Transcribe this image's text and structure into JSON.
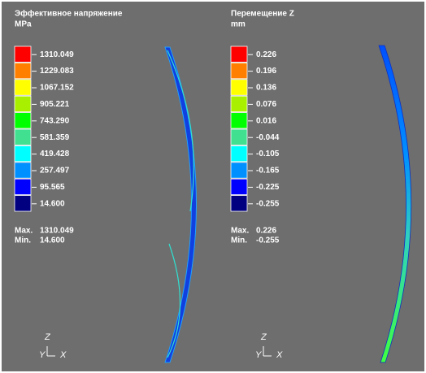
{
  "panels": [
    {
      "title": "Эффективное напряжение",
      "unit": "MPa",
      "legend": [
        {
          "label": "1310.049",
          "color": "#ff0000"
        },
        {
          "label": "1229.083",
          "color": "#ff8000"
        },
        {
          "label": "1067.152",
          "color": "#ffff00"
        },
        {
          "label": "905.221",
          "color": "#a8f000"
        },
        {
          "label": "743.290",
          "color": "#00ff00"
        },
        {
          "label": "581.359",
          "color": "#40e090"
        },
        {
          "label": "419.428",
          "color": "#00ffff"
        },
        {
          "label": "257.497",
          "color": "#0090ff"
        },
        {
          "label": "95.565",
          "color": "#0000ff"
        },
        {
          "label": "14.600",
          "color": "#000080"
        }
      ],
      "max_label": "Max.",
      "max": "1310.049",
      "min_label": "Min.",
      "min": "14.600",
      "axes": {
        "z": "Z",
        "y": "Y",
        "x": "X"
      }
    },
    {
      "title": "Перемещение Z",
      "unit": "mm",
      "legend": [
        {
          "label": "0.226",
          "color": "#ff0000"
        },
        {
          "label": "0.196",
          "color": "#ff8000"
        },
        {
          "label": "0.136",
          "color": "#ffff00"
        },
        {
          "label": "0.076",
          "color": "#a8f000"
        },
        {
          "label": "0.016",
          "color": "#00ff00"
        },
        {
          "label": "-0.044",
          "color": "#40e090"
        },
        {
          "label": "-0.105",
          "color": "#00ffff"
        },
        {
          "label": "-0.165",
          "color": "#0090ff"
        },
        {
          "label": "-0.225",
          "color": "#0000ff"
        },
        {
          "label": "-0.255",
          "color": "#000080"
        }
      ],
      "max_label": "Max.",
      "max": "0.226",
      "min_label": "Min.",
      "min": "-0.255",
      "axes": {
        "z": "Z",
        "y": "Y",
        "x": "X"
      }
    }
  ]
}
